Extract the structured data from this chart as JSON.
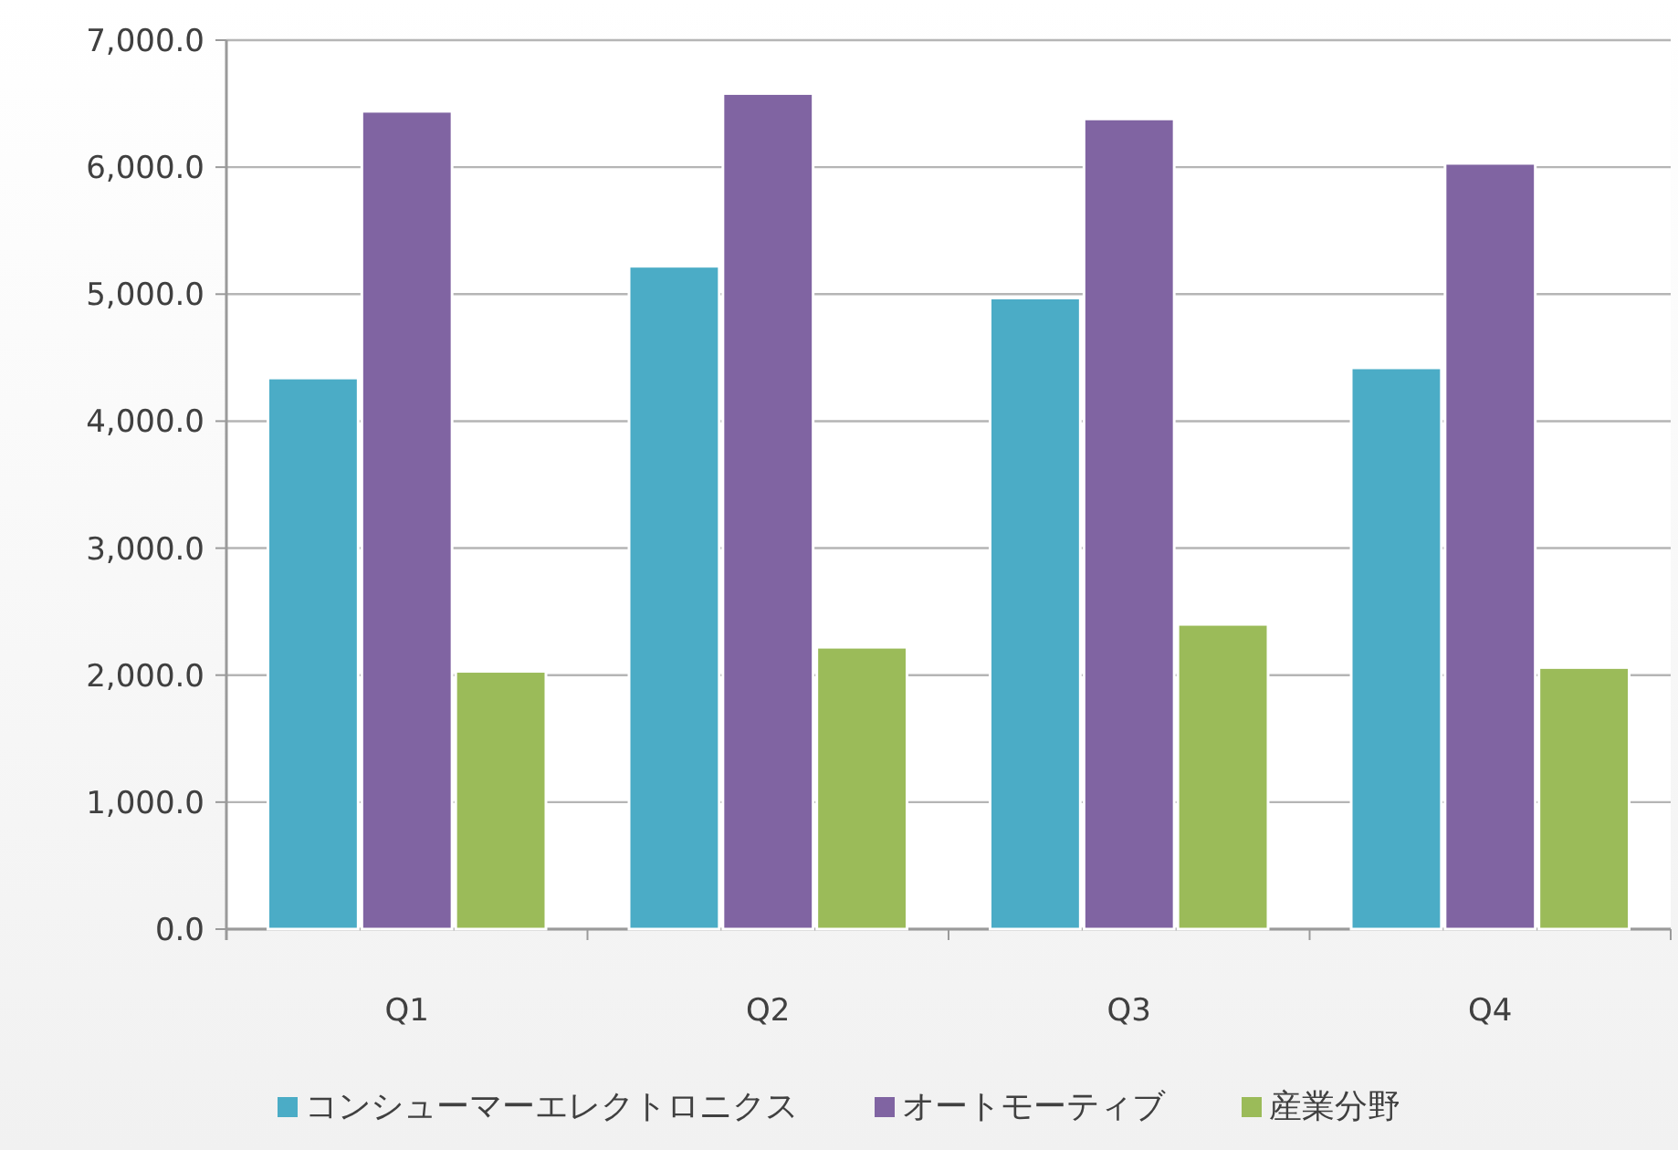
{
  "chart_data": {
    "type": "bar",
    "categories": [
      "Q1",
      "Q2",
      "Q3",
      "Q4"
    ],
    "series": [
      {
        "name": "コンシューマーエレクトロニクス",
        "color": "#4bacc6",
        "values": [
          4340,
          5220,
          4970,
          4420
        ]
      },
      {
        "name": "オートモーティブ",
        "color": "#8064a2",
        "values": [
          6440,
          6580,
          6380,
          6030
        ]
      },
      {
        "name": "産業分野",
        "color": "#9bbb59",
        "values": [
          2030,
          2220,
          2400,
          2060
        ]
      }
    ],
    "ylim": [
      0,
      7000
    ],
    "yticks": [
      {
        "value": 0,
        "label": "0.0"
      },
      {
        "value": 1000,
        "label": "1,000.0"
      },
      {
        "value": 2000,
        "label": "2,000.0"
      },
      {
        "value": 3000,
        "label": "3,000.0"
      },
      {
        "value": 4000,
        "label": "4,000.0"
      },
      {
        "value": 5000,
        "label": "5,000.0"
      },
      {
        "value": 6000,
        "label": "6,000.0"
      },
      {
        "value": 7000,
        "label": "7,000.0"
      }
    ],
    "grid": "y",
    "legend": "bottom"
  }
}
